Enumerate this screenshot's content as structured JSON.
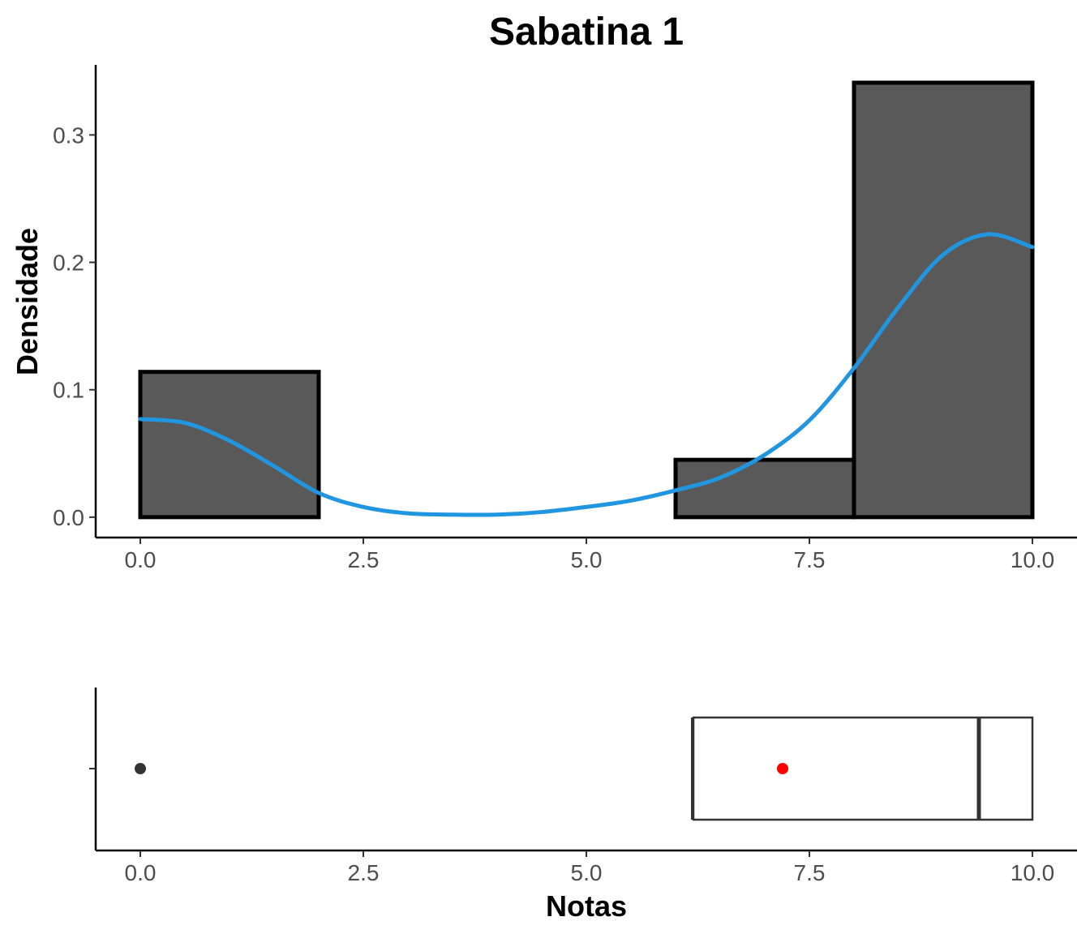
{
  "chart_data": [
    {
      "type": "histogram",
      "title": "Sabatina 1",
      "xlabel": "",
      "ylabel": "Densidade",
      "xlim": [
        -0.5,
        10.5
      ],
      "ylim": [
        -0.016,
        0.355
      ],
      "x_ticks": [
        "0.0",
        "2.5",
        "5.0",
        "7.5",
        "10.0"
      ],
      "x_tick_values": [
        0,
        2.5,
        5,
        7.5,
        10
      ],
      "y_ticks": [
        "0.0",
        "0.1",
        "0.2",
        "0.3"
      ],
      "y_tick_values": [
        0,
        0.1,
        0.2,
        0.3
      ],
      "bins": [
        {
          "x0": 0,
          "x1": 2,
          "density": 0.114
        },
        {
          "x0": 2,
          "x1": 4,
          "density": 0.0
        },
        {
          "x0": 4,
          "x1": 6,
          "density": 0.0
        },
        {
          "x0": 6,
          "x1": 8,
          "density": 0.045
        },
        {
          "x0": 8,
          "x1": 10,
          "density": 0.341
        }
      ],
      "bar_color": "#595959",
      "density_curve": {
        "color": "#2196e0",
        "x": [
          0,
          0.5,
          1,
          1.5,
          2,
          2.5,
          3,
          3.5,
          4,
          4.5,
          5,
          5.5,
          6,
          6.5,
          7,
          7.5,
          8,
          8.5,
          9,
          9.5,
          10
        ],
        "y": [
          0.077,
          0.074,
          0.06,
          0.04,
          0.019,
          0.008,
          0.003,
          0.002,
          0.002,
          0.004,
          0.008,
          0.013,
          0.021,
          0.031,
          0.049,
          0.076,
          0.117,
          0.165,
          0.206,
          0.222,
          0.212
        ]
      }
    },
    {
      "type": "boxplot",
      "xlabel": "Notas",
      "xlim": [
        -0.5,
        10.5
      ],
      "x_ticks": [
        "0.0",
        "2.5",
        "5.0",
        "7.5",
        "10.0"
      ],
      "x_tick_values": [
        0,
        2.5,
        5,
        7.5,
        10
      ],
      "lower_whisker": 6.2,
      "q1": 6.2,
      "median": 9.4,
      "q3": 10.0,
      "upper_whisker": 10.0,
      "outliers": [
        0.0
      ],
      "mean": 7.2,
      "mean_color": "#ff0000",
      "outlier_color": "#333333"
    }
  ]
}
